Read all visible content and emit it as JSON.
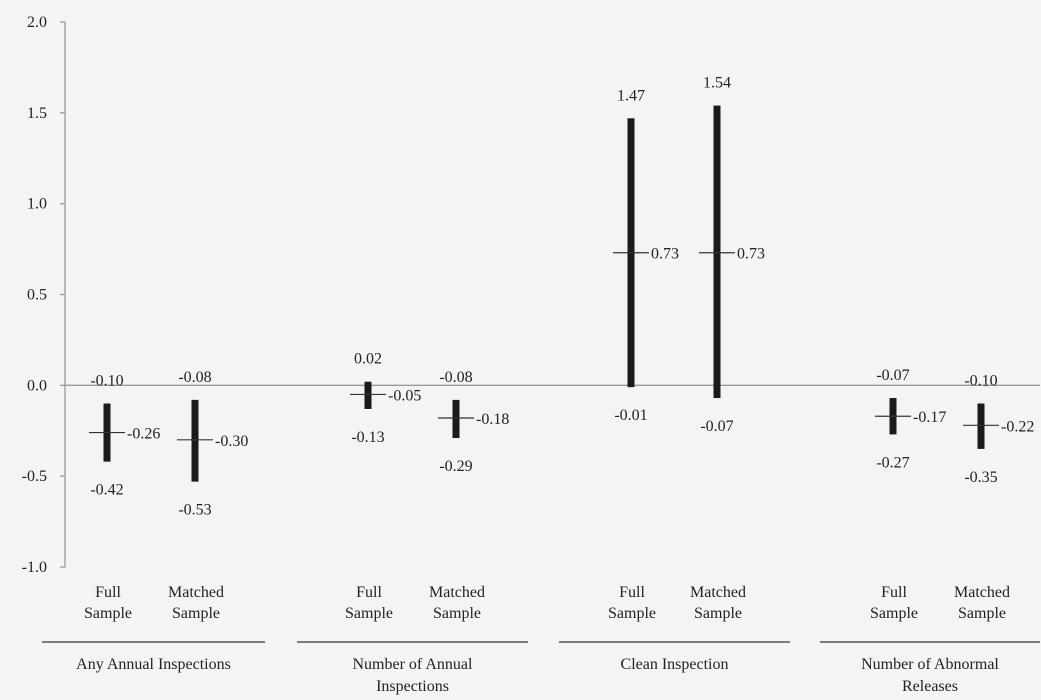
{
  "chart_data": {
    "type": "error-bar",
    "title": "",
    "xlabel": "",
    "ylabel": "",
    "ylim": [
      -1.0,
      2.0
    ],
    "yticks": [
      "2.0",
      "1.5",
      "1.0",
      "0.5",
      "0.0",
      "-0.5",
      "-1.0"
    ],
    "ytick_values": [
      2.0,
      1.5,
      1.0,
      0.5,
      0.0,
      -0.5,
      -1.0
    ],
    "zero_line": true,
    "grid": false,
    "legend": "none",
    "bar_color": "#1a1a1a",
    "groups": [
      {
        "name_lines": [
          "Any Annual Inspections"
        ],
        "items": [
          {
            "label_lines": [
              "Full",
              "Sample"
            ],
            "low": -0.42,
            "high": -0.1,
            "point": -0.26,
            "low_label": "-0.42",
            "high_label": "-0.10",
            "point_label": "-0.26"
          },
          {
            "label_lines": [
              "Matched",
              "Sample"
            ],
            "low": -0.53,
            "high": -0.08,
            "point": -0.3,
            "low_label": "-0.53",
            "high_label": "-0.08",
            "point_label": "-0.30"
          }
        ]
      },
      {
        "name_lines": [
          "Number of Annual",
          "Inspections"
        ],
        "items": [
          {
            "label_lines": [
              "Full",
              "Sample"
            ],
            "low": -0.13,
            "high": 0.02,
            "point": -0.05,
            "low_label": "-0.13",
            "high_label": "0.02",
            "point_label": "-0.05"
          },
          {
            "label_lines": [
              "Matched",
              "Sample"
            ],
            "low": -0.29,
            "high": -0.08,
            "point": -0.18,
            "low_label": "-0.29",
            "high_label": "-0.08",
            "point_label": "-0.18"
          }
        ]
      },
      {
        "name_lines": [
          "Clean Inspection"
        ],
        "items": [
          {
            "label_lines": [
              "Full",
              "Sample"
            ],
            "low": -0.01,
            "high": 1.47,
            "point": 0.73,
            "low_label": "-0.01",
            "high_label": "1.47",
            "point_label": "0.73"
          },
          {
            "label_lines": [
              "Matched",
              "Sample"
            ],
            "low": -0.07,
            "high": 1.54,
            "point": 0.73,
            "low_label": "-0.07",
            "high_label": "1.54",
            "point_label": "0.73"
          }
        ]
      },
      {
        "name_lines": [
          "Number of Abnormal",
          "Releases"
        ],
        "items": [
          {
            "label_lines": [
              "Full",
              "Sample"
            ],
            "low": -0.27,
            "high": -0.07,
            "point": -0.17,
            "low_label": "-0.27",
            "high_label": "-0.07",
            "point_label": "-0.17"
          },
          {
            "label_lines": [
              "Matched",
              "Sample"
            ],
            "low": -0.35,
            "high": -0.1,
            "point": -0.22,
            "low_label": "-0.35",
            "high_label": "-0.10",
            "point_label": "-0.22"
          }
        ]
      }
    ]
  }
}
